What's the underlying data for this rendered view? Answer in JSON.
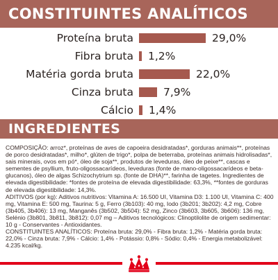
{
  "header": {
    "title": "CONSTITUINTES ANALÍTICOS"
  },
  "chart_data": {
    "type": "bar",
    "categories": [
      "Proteína bruta",
      "Fibra bruta",
      "Matéria gorda bruta",
      "Cinza bruta",
      "Cálcio"
    ],
    "values": [
      29.0,
      1.2,
      22.0,
      7.9,
      1.4
    ],
    "value_labels": [
      "29,0%",
      "1,2%",
      "22,0%",
      "7,9%",
      "1,4%"
    ],
    "orientation": "horizontal",
    "unit": "%",
    "color": "#a6594e"
  },
  "ingredients": {
    "title": "INGREDIENTES",
    "composition": "COMPOSIÇÃO: arroz*, proteínas de aves de capoeira desidratadas*, gorduras animais**, proteínas de porco desidratadas*, milho*, glúten de trigo*, polpa de beterraba, proteínas animais hidrolisadas*, sais minerais, ovos em pó*, óleo de soja**, produtos de leveduras, óleo de peixe**, cascas e sementes de psyllium, fruto-oligossacarídeos, leveduras (fonte de mano-oligossacarídeos e beta-glucanos), óleo de algas Schizochytrium sp. (fonte de DHA)**, farinha de tagetes. Ingredientes de elevada digestibilidade: *fontes de proteína de elevada digestibilidade: 63,3%, **fontes de gorduras de elevada digestibilidade: 14,3%.",
    "additives": "ADITIVOS (por kg): Aditivos nutritivos: Vitamina A: 16.500 UI, Vitamina D3: 1.100 UI, Vitamina C: 400 mg, Vitamina E: 500 mg, Taurina: 5 g, Ferro (3b103): 40 mg, Iodo (3b201; 3b202): 4,2 mg, Cobre (3b405, 3b406): 13 mg, Manganês (3b502, 3b504): 52 mg, Zinco (3b603, 3b605, 3b606): 136 mg, Selénio (3b801, 3b811, 3b812): 0,07 mg – Aditivos tecnológicos: Clinoptilolite de origem sedimentar: 10 g - Conservantes - Antioxidantes.",
    "constituents": "CONSTITUINTES ANALÍTICOS: Proteína bruta: 29,0% - Fibra bruta: 1,2% - Matéria gorda bruta: 22,0% - Cinza bruta: 7,9% - Cálcio: 1,4% - Potássio: 0,8% - Sódio: 0,4% - Energia metabolizável: 4.235 kcal/kg."
  },
  "colors": {
    "band": "#a8655a",
    "bar": "#a6594e",
    "footer_line": "#e2001a",
    "crown": "#e2001a"
  },
  "logo": {
    "icon": "royal-canin-crown-icon"
  }
}
